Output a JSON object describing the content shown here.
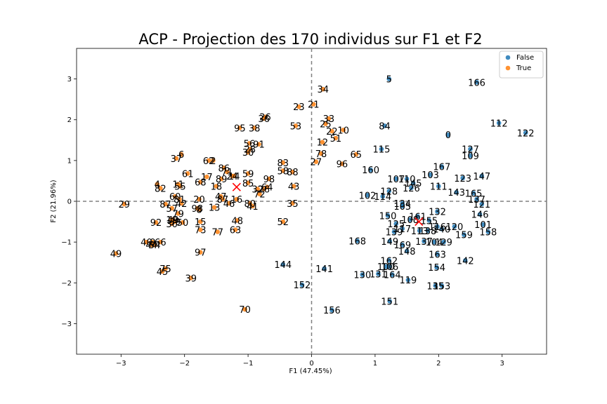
{
  "chart_data": {
    "type": "scatter",
    "title": "ACP - Projection des 170 individus sur F1 et F2",
    "xlabel": "F1 (47.45%)",
    "ylabel": "F2 (21.96%)",
    "xlim": [
      -3.7,
      3.7
    ],
    "ylim": [
      -3.75,
      3.75
    ],
    "xticks": [
      -3,
      -2,
      -1,
      0,
      1,
      2,
      3
    ],
    "yticks": [
      -3,
      -2,
      -1,
      0,
      1,
      2,
      3
    ],
    "xtick_labels": [
      "−3",
      "−2",
      "−1",
      "0",
      "1",
      "2",
      "3"
    ],
    "ytick_labels": [
      "−3",
      "−2",
      "−1",
      "0",
      "1",
      "2",
      "3"
    ],
    "grid": false,
    "reference_lines": {
      "x": 0,
      "y": 0,
      "style": "dashed"
    },
    "legend": {
      "placement": "top-right",
      "entries": [
        "False",
        "True"
      ]
    },
    "colors": {
      "False": "#1f77b4",
      "True": "#ff7f0e",
      "centroid": "#ff0000",
      "reference": "#808080"
    },
    "centroids": [
      {
        "name": "False",
        "x": 1.69,
        "y": -0.5
      },
      {
        "name": "True",
        "x": -1.18,
        "y": 0.35
      }
    ],
    "points": [
      {
        "label": "5",
        "x": 1.22,
        "y": 3.0,
        "group": "False"
      },
      {
        "label": "166",
        "x": 2.6,
        "y": 2.92,
        "group": "False"
      },
      {
        "label": "112",
        "x": 2.95,
        "y": 1.92,
        "group": "False"
      },
      {
        "label": "122",
        "x": 3.37,
        "y": 1.68,
        "group": "False"
      },
      {
        "label": "0",
        "x": 2.15,
        "y": 1.63,
        "group": "False"
      },
      {
        "label": "84",
        "x": 1.15,
        "y": 1.85,
        "group": "False"
      },
      {
        "label": "115",
        "x": 1.1,
        "y": 1.28,
        "group": "False"
      },
      {
        "label": "127",
        "x": 2.5,
        "y": 1.28,
        "group": "False"
      },
      {
        "label": "109",
        "x": 2.5,
        "y": 1.12,
        "group": "False"
      },
      {
        "label": "167",
        "x": 2.05,
        "y": 0.85,
        "group": "False"
      },
      {
        "label": "160",
        "x": 0.93,
        "y": 0.77,
        "group": "False"
      },
      {
        "label": "103",
        "x": 1.87,
        "y": 0.65,
        "group": "False"
      },
      {
        "label": "123",
        "x": 2.38,
        "y": 0.57,
        "group": "False"
      },
      {
        "label": "147",
        "x": 2.68,
        "y": 0.62,
        "group": "False"
      },
      {
        "label": "110",
        "x": 1.5,
        "y": 0.55,
        "group": "False"
      },
      {
        "label": "107",
        "x": 1.33,
        "y": 0.55,
        "group": "False"
      },
      {
        "label": "145",
        "x": 1.6,
        "y": 0.45,
        "group": "False"
      },
      {
        "label": "126",
        "x": 1.57,
        "y": 0.33,
        "group": "False"
      },
      {
        "label": "111",
        "x": 2.0,
        "y": 0.37,
        "group": "False"
      },
      {
        "label": "143",
        "x": 2.28,
        "y": 0.22,
        "group": "False"
      },
      {
        "label": "165",
        "x": 2.55,
        "y": 0.2,
        "group": "False"
      },
      {
        "label": "137",
        "x": 2.6,
        "y": 0.05,
        "group": "False"
      },
      {
        "label": "121",
        "x": 2.68,
        "y": -0.07,
        "group": "False"
      },
      {
        "label": "128",
        "x": 1.22,
        "y": 0.25,
        "group": "False"
      },
      {
        "label": "102",
        "x": 0.88,
        "y": 0.15,
        "group": "False"
      },
      {
        "label": "114",
        "x": 1.12,
        "y": 0.12,
        "group": "False"
      },
      {
        "label": "134",
        "x": 1.43,
        "y": -0.05,
        "group": "False"
      },
      {
        "label": "105",
        "x": 1.43,
        "y": -0.12,
        "group": "False"
      },
      {
        "label": "132",
        "x": 1.98,
        "y": -0.25,
        "group": "False"
      },
      {
        "label": "146",
        "x": 2.65,
        "y": -0.32,
        "group": "False"
      },
      {
        "label": "101",
        "x": 2.7,
        "y": -0.57,
        "group": "False"
      },
      {
        "label": "158",
        "x": 2.78,
        "y": -0.75,
        "group": "False"
      },
      {
        "label": "120",
        "x": 2.25,
        "y": -0.62,
        "group": "False"
      },
      {
        "label": "159",
        "x": 2.4,
        "y": -0.82,
        "group": "False"
      },
      {
        "label": "150",
        "x": 1.2,
        "y": -0.35,
        "group": "False"
      },
      {
        "label": "161",
        "x": 1.67,
        "y": -0.37,
        "group": "False"
      },
      {
        "label": "155",
        "x": 1.85,
        "y": -0.47,
        "group": "False"
      },
      {
        "label": "108",
        "x": 1.55,
        "y": -0.45,
        "group": "False"
      },
      {
        "label": "125",
        "x": 1.33,
        "y": -0.55,
        "group": "False"
      },
      {
        "label": "117",
        "x": 1.43,
        "y": -0.67,
        "group": "False"
      },
      {
        "label": "116",
        "x": 1.98,
        "y": -0.62,
        "group": "False"
      },
      {
        "label": "139",
        "x": 1.3,
        "y": -0.75,
        "group": "False"
      },
      {
        "label": "113",
        "x": 1.7,
        "y": -0.72,
        "group": "False"
      },
      {
        "label": "138",
        "x": 1.83,
        "y": -0.72,
        "group": "False"
      },
      {
        "label": "140",
        "x": 2.05,
        "y": -0.68,
        "group": "False"
      },
      {
        "label": "149",
        "x": 1.23,
        "y": -0.98,
        "group": "False"
      },
      {
        "label": "137b",
        "x": 1.77,
        "y": -0.98,
        "group": "False"
      },
      {
        "label": "104",
        "x": 1.93,
        "y": -1.0,
        "group": "False"
      },
      {
        "label": "129",
        "x": 2.08,
        "y": -1.0,
        "group": "False"
      },
      {
        "label": "169",
        "x": 1.43,
        "y": -1.07,
        "group": "False"
      },
      {
        "label": "148",
        "x": 1.5,
        "y": -1.22,
        "group": "False"
      },
      {
        "label": "163",
        "x": 1.98,
        "y": -1.3,
        "group": "False"
      },
      {
        "label": "142",
        "x": 2.42,
        "y": -1.45,
        "group": "False"
      },
      {
        "label": "162",
        "x": 1.22,
        "y": -1.45,
        "group": "False"
      },
      {
        "label": "106",
        "x": 1.23,
        "y": -1.6,
        "group": "False"
      },
      {
        "label": "100",
        "x": 1.17,
        "y": -1.6,
        "group": "False"
      },
      {
        "label": "154",
        "x": 1.97,
        "y": -1.62,
        "group": "False"
      },
      {
        "label": "131",
        "x": 1.05,
        "y": -1.78,
        "group": "False"
      },
      {
        "label": "130",
        "x": 0.8,
        "y": -1.8,
        "group": "False"
      },
      {
        "label": "164",
        "x": 1.27,
        "y": -1.8,
        "group": "False"
      },
      {
        "label": "119",
        "x": 1.52,
        "y": -1.93,
        "group": "False"
      },
      {
        "label": "135",
        "x": 1.95,
        "y": -2.07,
        "group": "False"
      },
      {
        "label": "153",
        "x": 2.05,
        "y": -2.07,
        "group": "False"
      },
      {
        "label": "151",
        "x": 1.23,
        "y": -2.45,
        "group": "False"
      },
      {
        "label": "168",
        "x": 0.72,
        "y": -0.97,
        "group": "False"
      },
      {
        "label": "144",
        "x": -0.45,
        "y": -1.55,
        "group": "False"
      },
      {
        "label": "141",
        "x": 0.2,
        "y": -1.65,
        "group": "False"
      },
      {
        "label": "152",
        "x": -0.15,
        "y": -2.05,
        "group": "False"
      },
      {
        "label": "156",
        "x": 0.32,
        "y": -2.67,
        "group": "False"
      },
      {
        "label": "34",
        "x": 0.18,
        "y": 2.75,
        "group": "True"
      },
      {
        "label": "21",
        "x": 0.03,
        "y": 2.38,
        "group": "True"
      },
      {
        "label": "23",
        "x": -0.2,
        "y": 2.32,
        "group": "True"
      },
      {
        "label": "33",
        "x": 0.27,
        "y": 2.03,
        "group": "True"
      },
      {
        "label": "25",
        "x": 0.22,
        "y": 1.9,
        "group": "True"
      },
      {
        "label": "10",
        "x": 0.5,
        "y": 1.75,
        "group": "True"
      },
      {
        "label": "22",
        "x": 0.32,
        "y": 1.72,
        "group": "True"
      },
      {
        "label": "51",
        "x": 0.38,
        "y": 1.55,
        "group": "True"
      },
      {
        "label": "12",
        "x": 0.17,
        "y": 1.45,
        "group": "True"
      },
      {
        "label": "78",
        "x": 0.15,
        "y": 1.17,
        "group": "True"
      },
      {
        "label": "65",
        "x": 0.7,
        "y": 1.15,
        "group": "True"
      },
      {
        "label": "27",
        "x": 0.07,
        "y": 0.97,
        "group": "True"
      },
      {
        "label": "96",
        "x": 0.48,
        "y": 0.92,
        "group": "True"
      },
      {
        "label": "53",
        "x": -0.25,
        "y": 1.85,
        "group": "True"
      },
      {
        "label": "26",
        "x": -0.73,
        "y": 2.07,
        "group": "True"
      },
      {
        "label": "36",
        "x": -0.75,
        "y": 2.03,
        "group": "True"
      },
      {
        "label": "95",
        "x": -1.13,
        "y": 1.8,
        "group": "True"
      },
      {
        "label": "38",
        "x": -0.9,
        "y": 1.8,
        "group": "True"
      },
      {
        "label": "56",
        "x": -0.98,
        "y": 1.42,
        "group": "True"
      },
      {
        "label": "91",
        "x": -0.83,
        "y": 1.4,
        "group": "True"
      },
      {
        "label": "28",
        "x": -0.97,
        "y": 1.28,
        "group": "True"
      },
      {
        "label": "30",
        "x": -1.0,
        "y": 1.2,
        "group": "True"
      },
      {
        "label": "83",
        "x": -0.45,
        "y": 0.95,
        "group": "True"
      },
      {
        "label": "58",
        "x": -0.45,
        "y": 0.75,
        "group": "True"
      },
      {
        "label": "88",
        "x": -0.3,
        "y": 0.72,
        "group": "True"
      },
      {
        "label": "59",
        "x": -1.0,
        "y": 0.68,
        "group": "True"
      },
      {
        "label": "98",
        "x": -0.67,
        "y": 0.55,
        "group": "True"
      },
      {
        "label": "85",
        "x": -1.0,
        "y": 0.45,
        "group": "True"
      },
      {
        "label": "43",
        "x": -0.28,
        "y": 0.37,
        "group": "True"
      },
      {
        "label": "32",
        "x": -0.85,
        "y": 0.3,
        "group": "True"
      },
      {
        "label": "64",
        "x": -0.7,
        "y": 0.35,
        "group": "True"
      },
      {
        "label": "26b",
        "x": -0.75,
        "y": 0.3,
        "group": "True"
      },
      {
        "label": "72",
        "x": -0.82,
        "y": 0.18,
        "group": "True"
      },
      {
        "label": "35",
        "x": -0.3,
        "y": -0.05,
        "group": "True"
      },
      {
        "label": "80",
        "x": -0.97,
        "y": -0.05,
        "group": "True"
      },
      {
        "label": "41",
        "x": -0.93,
        "y": -0.12,
        "group": "True"
      },
      {
        "label": "52",
        "x": -0.45,
        "y": -0.5,
        "group": "True"
      },
      {
        "label": "48",
        "x": -1.17,
        "y": -0.47,
        "group": "True"
      },
      {
        "label": "63",
        "x": -1.2,
        "y": -0.7,
        "group": "True"
      },
      {
        "label": "6",
        "x": -2.05,
        "y": 1.15,
        "group": "True"
      },
      {
        "label": "37",
        "x": -2.13,
        "y": 1.05,
        "group": "True"
      },
      {
        "label": "62",
        "x": -1.62,
        "y": 1.0,
        "group": "True"
      },
      {
        "label": "2",
        "x": -1.55,
        "y": 1.0,
        "group": "True"
      },
      {
        "label": "86",
        "x": -1.38,
        "y": 0.82,
        "group": "True"
      },
      {
        "label": "71",
        "x": -1.33,
        "y": 0.72,
        "group": "True"
      },
      {
        "label": "24",
        "x": -1.25,
        "y": 0.62,
        "group": "True"
      },
      {
        "label": "14",
        "x": -1.22,
        "y": 0.62,
        "group": "True"
      },
      {
        "label": "61",
        "x": -1.95,
        "y": 0.68,
        "group": "True"
      },
      {
        "label": "17",
        "x": -1.65,
        "y": 0.6,
        "group": "True"
      },
      {
        "label": "89",
        "x": -1.42,
        "y": 0.55,
        "group": "True"
      },
      {
        "label": "18",
        "x": -1.5,
        "y": 0.37,
        "group": "True"
      },
      {
        "label": "68",
        "x": -1.75,
        "y": 0.47,
        "group": "True"
      },
      {
        "label": "4",
        "x": -2.43,
        "y": 0.42,
        "group": "True"
      },
      {
        "label": "82",
        "x": -2.38,
        "y": 0.32,
        "group": "True"
      },
      {
        "label": "11",
        "x": -2.1,
        "y": 0.42,
        "group": "True"
      },
      {
        "label": "55",
        "x": -2.07,
        "y": 0.37,
        "group": "True"
      },
      {
        "label": "60",
        "x": -2.15,
        "y": 0.12,
        "group": "True"
      },
      {
        "label": "81",
        "x": -2.08,
        "y": 0.05,
        "group": "True"
      },
      {
        "label": "20",
        "x": -1.77,
        "y": 0.05,
        "group": "True"
      },
      {
        "label": "47",
        "x": -1.43,
        "y": 0.12,
        "group": "True"
      },
      {
        "label": "87",
        "x": -1.4,
        "y": 0.05,
        "group": "True"
      },
      {
        "label": "16",
        "x": -1.18,
        "y": 0.05,
        "group": "True"
      },
      {
        "label": "46",
        "x": -1.3,
        "y": -0.05,
        "group": "True"
      },
      {
        "label": "87b",
        "x": -2.3,
        "y": -0.07,
        "group": "True"
      },
      {
        "label": "42",
        "x": -2.05,
        "y": -0.05,
        "group": "True"
      },
      {
        "label": "57",
        "x": -2.2,
        "y": -0.17,
        "group": "True"
      },
      {
        "label": "98b",
        "x": -1.8,
        "y": -0.17,
        "group": "True"
      },
      {
        "label": "8",
        "x": -1.77,
        "y": -0.2,
        "group": "True"
      },
      {
        "label": "13",
        "x": -1.53,
        "y": -0.15,
        "group": "True"
      },
      {
        "label": "79",
        "x": -2.1,
        "y": -0.3,
        "group": "True"
      },
      {
        "label": "29",
        "x": -2.95,
        "y": -0.07,
        "group": "True"
      },
      {
        "label": "49",
        "x": -2.18,
        "y": -0.45,
        "group": "True"
      },
      {
        "label": "19",
        "x": -2.2,
        "y": -0.45,
        "group": "True"
      },
      {
        "label": "39b",
        "x": -2.15,
        "y": -0.5,
        "group": "True"
      },
      {
        "label": "50",
        "x": -2.03,
        "y": -0.52,
        "group": "True"
      },
      {
        "label": "30b",
        "x": -2.2,
        "y": -0.55,
        "group": "True"
      },
      {
        "label": "92",
        "x": -2.45,
        "y": -0.52,
        "group": "True"
      },
      {
        "label": "15",
        "x": -1.75,
        "y": -0.5,
        "group": "True"
      },
      {
        "label": "73",
        "x": -1.75,
        "y": -0.7,
        "group": "True"
      },
      {
        "label": "77",
        "x": -1.48,
        "y": -0.75,
        "group": "True"
      },
      {
        "label": "40",
        "x": -2.6,
        "y": -1.0,
        "group": "True"
      },
      {
        "label": "9",
        "x": -2.5,
        "y": -1.0,
        "group": "True"
      },
      {
        "label": "66",
        "x": -2.38,
        "y": -1.0,
        "group": "True"
      },
      {
        "label": "44",
        "x": -2.52,
        "y": -1.07,
        "group": "True"
      },
      {
        "label": "54",
        "x": -2.47,
        "y": -1.07,
        "group": "True"
      },
      {
        "label": "97",
        "x": -1.75,
        "y": -1.25,
        "group": "True"
      },
      {
        "label": "49b",
        "x": -3.08,
        "y": -1.28,
        "group": "True"
      },
      {
        "label": "75",
        "x": -2.3,
        "y": -1.65,
        "group": "True"
      },
      {
        "label": "45",
        "x": -2.35,
        "y": -1.72,
        "group": "True"
      },
      {
        "label": "39",
        "x": -1.9,
        "y": -1.88,
        "group": "True"
      },
      {
        "label": "70",
        "x": -1.05,
        "y": -2.65,
        "group": "True"
      }
    ],
    "point_labels": [
      "5",
      "166",
      "112",
      "122",
      "0",
      "84",
      "115",
      "127",
      "109",
      "167",
      "160",
      "103",
      "123",
      "147",
      "110",
      "107",
      "145",
      "126",
      "111",
      "143",
      "165",
      "137",
      "121",
      "128",
      "102",
      "114",
      "134",
      "105",
      "132",
      "146",
      "101",
      "158",
      "120",
      "159",
      "150",
      "161",
      "155",
      "108",
      "125",
      "117",
      "116",
      "139",
      "113",
      "138",
      "140",
      "149",
      "137",
      "104",
      "129",
      "169",
      "148",
      "163",
      "142",
      "162",
      "106",
      "100",
      "154",
      "131",
      "130",
      "164",
      "119",
      "135",
      "153",
      "151",
      "168",
      "144",
      "141",
      "152",
      "156",
      "34",
      "21",
      "23",
      "33",
      "25",
      "10",
      "22",
      "51",
      "12",
      "78",
      "65",
      "27",
      "96",
      "53",
      "26",
      "36",
      "95",
      "38",
      "56",
      "91",
      "28",
      "30",
      "83",
      "58",
      "88",
      "59",
      "98",
      "85",
      "43",
      "32",
      "64",
      "26",
      "72",
      "35",
      "80",
      "41",
      "52",
      "48",
      "63",
      "6",
      "37",
      "62",
      "2",
      "86",
      "71",
      "24",
      "14",
      "61",
      "17",
      "89",
      "18",
      "68",
      "4",
      "82",
      "11",
      "55",
      "60",
      "81",
      "20",
      "47",
      "87",
      "16",
      "46",
      "87",
      "42",
      "57",
      "98",
      "8",
      "13",
      "79",
      "29",
      "49",
      "19",
      "39",
      "50",
      "30",
      "92",
      "15",
      "73",
      "77",
      "40",
      "9",
      "66",
      "44",
      "54",
      "97",
      "49",
      "75",
      "45",
      "39",
      "70"
    ]
  }
}
